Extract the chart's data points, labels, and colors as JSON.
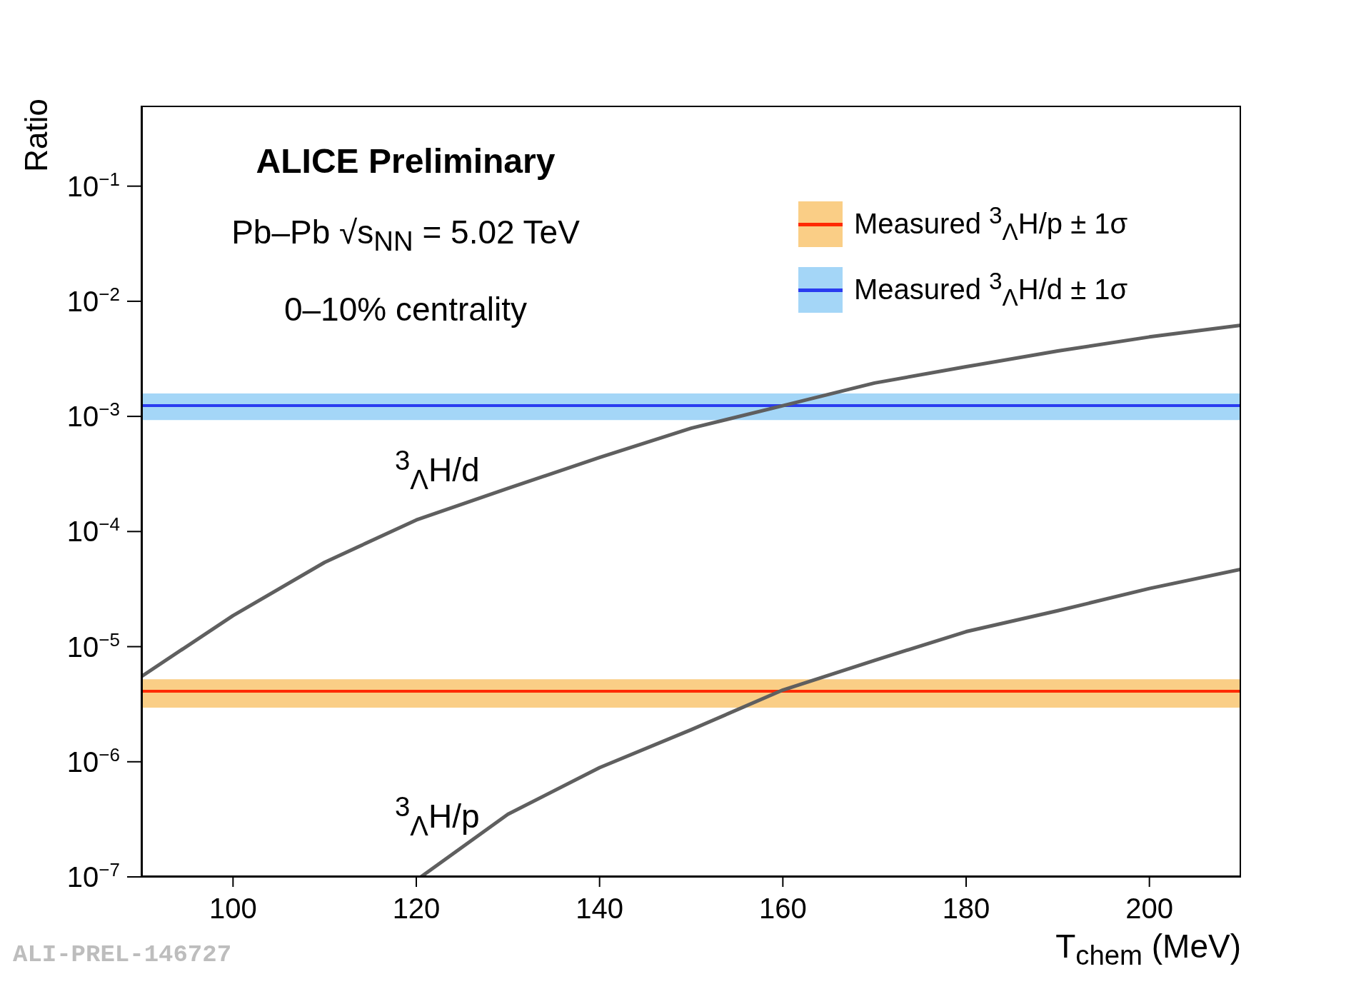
{
  "chart_data": {
    "type": "line",
    "title": "ALICE Preliminary",
    "xlabel": "T$_{chem}$ (MeV)",
    "ylabel": "Ratio",
    "log": "y",
    "xlim": [
      90,
      210
    ],
    "xticks": [
      100,
      120,
      140,
      160,
      180,
      200
    ],
    "ylim": [
      1e-07,
      0.5
    ],
    "yticks": [
      {
        "value": 1e-07,
        "label": "10$^{−7}$"
      },
      {
        "value": 1e-06,
        "label": "10$^{−6}$"
      },
      {
        "value": 1e-05,
        "label": "10$^{−5}$"
      },
      {
        "value": 0.0001,
        "label": "10$^{−4}$"
      },
      {
        "value": 0.001,
        "label": "10$^{−3}$"
      },
      {
        "value": 0.01,
        "label": "10$^{−2}$"
      },
      {
        "value": 0.1,
        "label": "10$^{−1}$"
      }
    ],
    "legend": "top right",
    "line_style": "solid",
    "marker": "none",
    "series": [
      {
        "color": "#5f5f5f",
        "x": [
          90,
          100,
          110,
          120,
          130,
          140,
          150,
          160,
          170,
          180,
          190,
          200,
          210
        ],
        "values": [
          5.5e-06,
          1.86e-05,
          5.4e-05,
          0.000126,
          0.000237,
          0.00044,
          0.00079,
          0.00124,
          0.00195,
          0.0027,
          0.0037,
          0.0049,
          0.0062
        ]
      },
      {
        "color": "#5f5f5f",
        "x": [
          120.5,
          130,
          140,
          150,
          160,
          170,
          180,
          190,
          200,
          210
        ],
        "values": [
          1e-07,
          3.5e-07,
          8.9e-07,
          1.9e-06,
          4.2e-06,
          7.6e-06,
          1.35e-05,
          2.05e-05,
          3.2e-05,
          4.7e-05
        ]
      }
    ],
    "bands": [
      {
        "axis": "y",
        "from": 2.95e-06,
        "to": 5.2e-06,
        "color": "#f5a623",
        "label": "Measured $^{3}$$_{Λ}$H/p ± 1σ"
      },
      {
        "axis": "y",
        "from": 0.00093,
        "to": 0.00158,
        "color": "#5ab4f0",
        "label": "Measured $^{3}$$_{Λ}$H/d ± 1σ"
      }
    ],
    "ref_lines": [
      {
        "axis": "y",
        "value": 4.1e-06,
        "color": "#ff2a00"
      },
      {
        "axis": "y",
        "value": 0.00124,
        "color": "#2a3cf0"
      }
    ],
    "annotations": [
      "Pb–Pb √s$_{NN}$ = 5.02 TeV",
      "0–10% centrality",
      "$^{3}$$_{Λ}$H/d",
      "$^{3}$$_{Λ}$H/p",
      "ALI-PREL-146727"
    ]
  }
}
